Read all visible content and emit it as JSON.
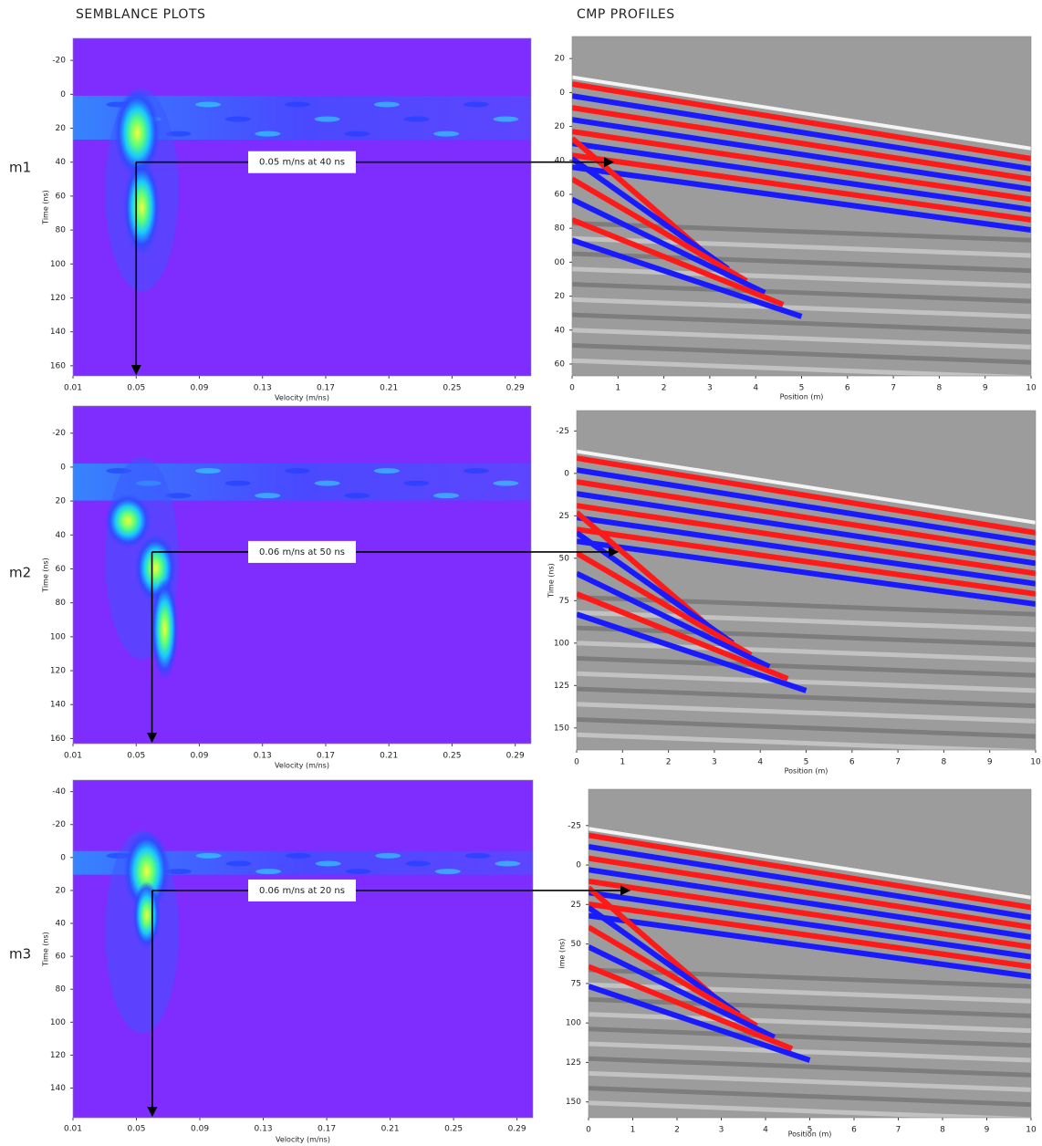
{
  "column_titles": [
    "SEMBLANCE PLOTS",
    "CMP PROFILES"
  ],
  "row_labels": [
    "m1",
    "m2",
    "m3"
  ],
  "chart_data": [
    {
      "type": "semblance",
      "xlabel": "Velocity (m/ns)",
      "ylabel": "Time (ns)",
      "xlim": [
        0.01,
        0.3
      ],
      "xticks": [
        0.01,
        0.05,
        0.09,
        0.13,
        0.17,
        0.21,
        0.25,
        0.29
      ],
      "ylim": [
        -33,
        166
      ],
      "yticks": [
        -20,
        0,
        20,
        40,
        60,
        80,
        100,
        120,
        140,
        160
      ],
      "annotation": {
        "text": "0.05 m/ns at 40 ns",
        "x": 0.05,
        "y": 40
      }
    },
    {
      "type": "cmp",
      "xlabel": "Position (m)",
      "xlim": [
        0,
        10
      ],
      "xticks": [
        0,
        1,
        2,
        3,
        4,
        5,
        6,
        7,
        8,
        9,
        10
      ],
      "ylim": [
        -33,
        167
      ],
      "yticks": [
        {
          "value": -20,
          "label": "20"
        },
        0,
        20,
        40,
        60,
        80,
        {
          "value": 100,
          "label": "00"
        },
        {
          "value": 120,
          "label": "20"
        },
        {
          "value": 140,
          "label": "40"
        },
        {
          "value": 160,
          "label": "60"
        }
      ]
    },
    {
      "type": "semblance",
      "xlabel": "Velocity (m/ns)",
      "ylabel": "Time (ns)",
      "xlim": [
        0.01,
        0.3
      ],
      "xticks": [
        0.01,
        0.05,
        0.09,
        0.13,
        0.17,
        0.21,
        0.25,
        0.29
      ],
      "ylim": [
        -36,
        163
      ],
      "yticks": [
        -20,
        0,
        20,
        40,
        60,
        80,
        100,
        120,
        140,
        160
      ],
      "annotation": {
        "text": "0.06 m/ns at 50 ns",
        "x": 0.06,
        "y": 50
      }
    },
    {
      "type": "cmp",
      "xlabel": "Position (m)",
      "ylabel": "Time (ns)",
      "xlim": [
        0,
        10
      ],
      "xticks": [
        0,
        1,
        2,
        3,
        4,
        5,
        6,
        7,
        8,
        9,
        10
      ],
      "ylim": [
        -37,
        163
      ],
      "yticks": [
        -25,
        0,
        25,
        50,
        75,
        100,
        125,
        150
      ]
    },
    {
      "type": "semblance",
      "xlabel": "Velocity (m/ns)",
      "ylabel": "Time (ns)",
      "xlim": [
        0.01,
        0.3
      ],
      "xticks": [
        0.01,
        0.05,
        0.09,
        0.13,
        0.17,
        0.21,
        0.25,
        0.29
      ],
      "ylim": [
        -47,
        158
      ],
      "yticks": [
        -40,
        -20,
        0,
        20,
        40,
        60,
        80,
        100,
        120,
        140
      ],
      "annotation": {
        "text": "0.06 m/ns at 20 ns",
        "x": 0.06,
        "y": 20
      }
    },
    {
      "type": "cmp",
      "xlabel": "Position (m)",
      "ylabel": "ime (ns)",
      "xlim": [
        0,
        10
      ],
      "xticks": [
        0,
        1,
        2,
        3,
        4,
        5,
        6,
        7,
        8,
        9,
        10
      ],
      "ylim": [
        -48,
        160
      ],
      "yticks": [
        -25,
        0,
        25,
        50,
        75,
        100,
        125,
        150
      ]
    }
  ]
}
